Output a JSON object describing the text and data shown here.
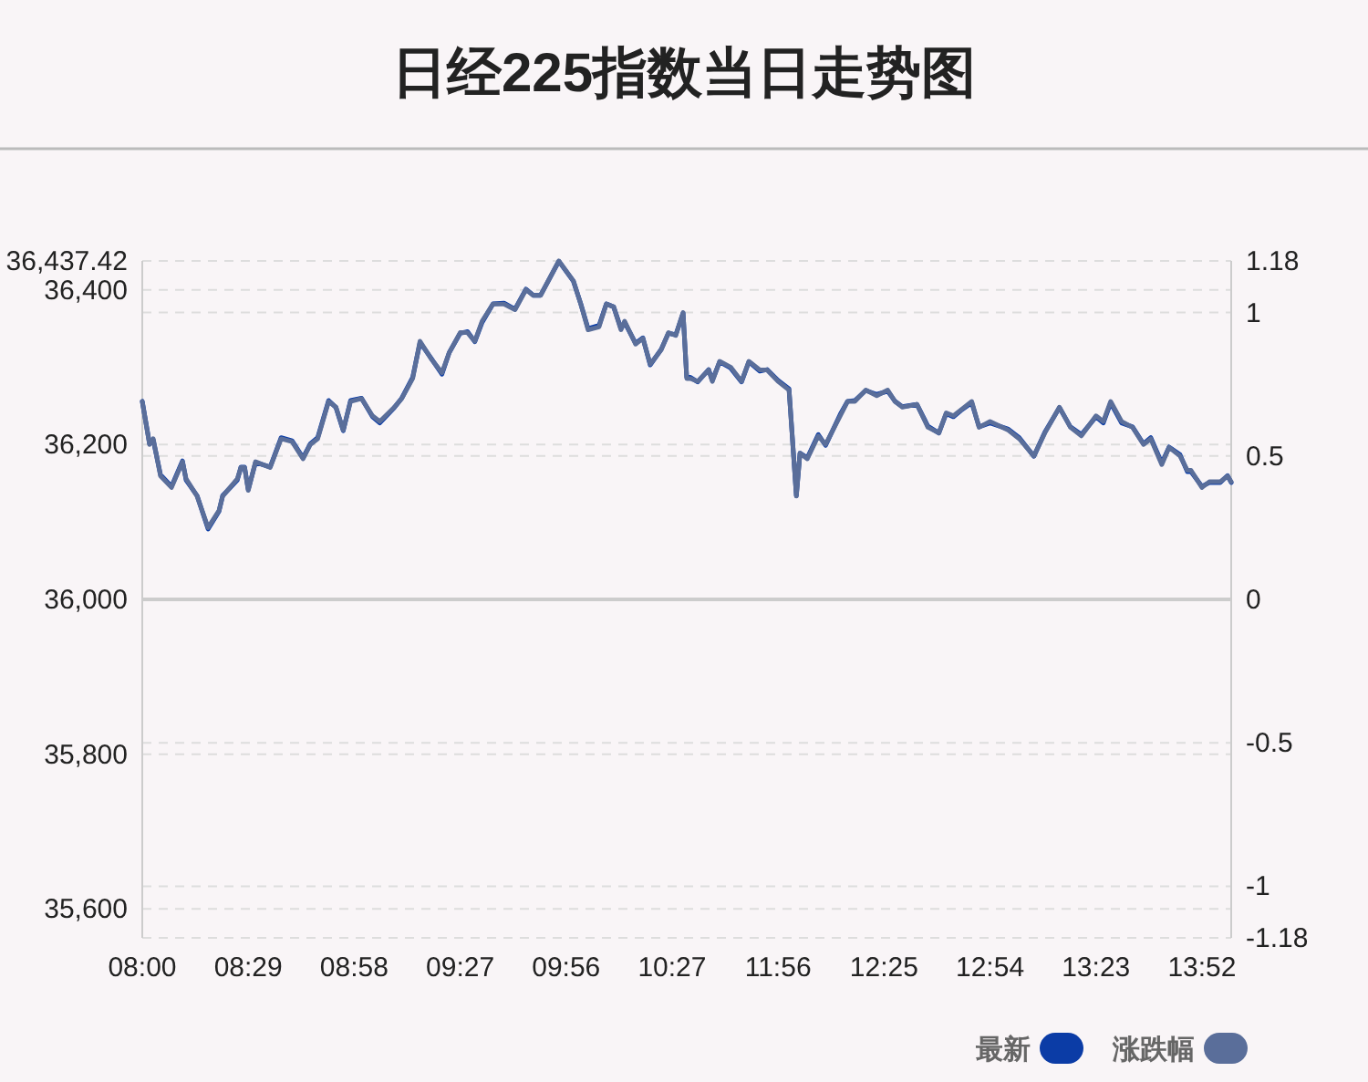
{
  "chart_data": {
    "type": "line",
    "title": "日经225指数当日走势图",
    "categories": [
      "08:00",
      null,
      null,
      null,
      null,
      null,
      null,
      null,
      null,
      null,
      null,
      null,
      null,
      null,
      null,
      null,
      null,
      null,
      null,
      null,
      null,
      null,
      null,
      null,
      null,
      null,
      null,
      null,
      null,
      "08:29",
      null,
      null,
      null,
      null,
      null,
      null,
      null,
      null,
      null,
      null,
      null,
      null,
      null,
      null,
      null,
      null,
      null,
      null,
      null,
      null,
      null,
      null,
      null,
      null,
      null,
      null,
      null,
      null,
      "08:58",
      null,
      null,
      null,
      null,
      null,
      null,
      null,
      null,
      null,
      null,
      null,
      null,
      null,
      null,
      null,
      null,
      null,
      null,
      null,
      null,
      null,
      null,
      null,
      null,
      null,
      null,
      null,
      null,
      "09:27",
      null,
      null,
      null,
      null,
      null,
      null,
      null,
      null,
      null,
      null,
      null,
      null,
      null,
      null,
      null,
      null,
      null,
      null,
      null,
      null,
      null,
      null,
      null,
      null,
      null,
      null,
      null,
      null,
      "09:56",
      null,
      null,
      null,
      null,
      null,
      null,
      null,
      null,
      null,
      null,
      null,
      null,
      null,
      null,
      null,
      null,
      null,
      null,
      null,
      null,
      null,
      null,
      null,
      null,
      null,
      null,
      null,
      null,
      "10:27",
      null,
      null,
      null,
      null,
      null,
      null,
      null,
      null,
      null,
      null,
      null,
      null,
      null,
      null,
      null,
      null,
      null,
      null,
      null,
      null,
      null,
      null,
      null,
      null,
      null,
      null,
      null,
      null,
      "11:56",
      null,
      null,
      null,
      null,
      null,
      null,
      null,
      null,
      null,
      null,
      null,
      null,
      null,
      null,
      null,
      null,
      null,
      null,
      null,
      null,
      null,
      null,
      null,
      null,
      null,
      null,
      null,
      null,
      "12:25",
      null,
      null,
      null,
      null,
      null,
      null,
      null,
      null,
      null,
      null,
      null,
      null,
      null,
      null,
      null,
      null,
      null,
      null,
      null,
      null,
      null,
      null,
      null,
      null,
      null,
      null,
      null,
      null,
      "12:54",
      null,
      null,
      null,
      null,
      null,
      null,
      null,
      null,
      null,
      null,
      null,
      null,
      null,
      null,
      null,
      null,
      null,
      null,
      null,
      null,
      null,
      null,
      null,
      null,
      null,
      null,
      null,
      null,
      "13:23",
      null,
      null,
      null,
      null,
      null,
      null,
      null,
      null,
      null,
      null,
      null,
      null,
      null,
      null,
      null,
      null,
      null,
      null,
      null,
      null,
      null,
      null,
      null,
      null,
      null,
      null,
      null,
      null,
      "13:52",
      null,
      null,
      null,
      null,
      null,
      null,
      null,
      null
    ],
    "series": [
      {
        "name": "最新",
        "color": "#0b3ca6",
        "values": [
          36256,
          null,
          36201,
          36206,
          null,
          36161,
          null,
          null,
          36146,
          null,
          null,
          36179,
          36154,
          null,
          null,
          36134,
          null,
          null,
          36091,
          null,
          null,
          36114,
          36134,
          null,
          null,
          null,
          36154,
          36171,
          36171,
          36142,
          null,
          36177,
          null,
          null,
          null,
          36171,
          null,
          null,
          36209,
          null,
          null,
          36205,
          null,
          null,
          36183,
          null,
          36201,
          null,
          36209,
          null,
          null,
          36257,
          null,
          36248,
          null,
          36218,
          null,
          36257,
          null,
          null,
          36260,
          null,
          null,
          36236,
          null,
          36228,
          null,
          null,
          null,
          36248,
          null,
          36260,
          null,
          null,
          36287,
          null,
          36332,
          null,
          null,
          36312,
          null,
          null,
          36291,
          null,
          36319,
          null,
          null,
          36344,
          null,
          36346,
          null,
          36333,
          null,
          36358,
          null,
          null,
          36382,
          null,
          null,
          36383,
          null,
          null,
          36375,
          null,
          null,
          36401,
          null,
          36393,
          null,
          36393,
          null,
          null,
          null,
          null,
          36437,
          null,
          null,
          null,
          36411,
          null,
          36382,
          null,
          36350,
          null,
          null,
          36354,
          null,
          36382,
          null,
          36378,
          null,
          36350,
          36358,
          null,
          null,
          36331,
          null,
          36338,
          null,
          36303,
          null,
          null,
          36323,
          null,
          36344,
          null,
          36342,
          null,
          36370,
          36287,
          36287,
          null,
          36281,
          null,
          null,
          36297,
          36283,
          null,
          36307,
          null,
          null,
          36299,
          null,
          null,
          36281,
          null,
          36307,
          null,
          null,
          36295,
          null,
          36297,
          null,
          null,
          36283,
          null,
          null,
          36272,
          null,
          36134,
          36189,
          null,
          36183,
          null,
          null,
          36213,
          null,
          36199,
          null,
          null,
          null,
          36239,
          null,
          36256,
          null,
          36257,
          null,
          null,
          36270,
          null,
          null,
          36265,
          null,
          null,
          36269,
          null,
          36256,
          null,
          36249,
          null,
          null,
          null,
          36252,
          null,
          null,
          36224,
          null,
          null,
          36215,
          null,
          36240,
          null,
          36236,
          null,
          36244,
          null,
          null,
          36254,
          null,
          36223,
          null,
          null,
          36228,
          null,
          null,
          null,
          null,
          36220,
          null,
          null,
          36209,
          null,
          null,
          null,
          36185,
          null,
          null,
          36216,
          null,
          null,
          null,
          36248,
          null,
          null,
          36223,
          null,
          null,
          36213,
          null,
          null,
          null,
          36236,
          null,
          36228,
          null,
          36254,
          null,
          null,
          36228,
          null,
          null,
          36223,
          null,
          null,
          36201,
          null,
          36209,
          null,
          null,
          36176,
          null,
          36197,
          null,
          null,
          36187,
          null,
          36165,
          36165,
          null,
          null,
          36146,
          null,
          36151,
          null,
          null,
          36151,
          null,
          36160,
          36151
        ]
      },
      {
        "name": "涨跌幅",
        "color": "#5a6e9a",
        "axis": "y2",
        "values": [
          0.69,
          null,
          0.54,
          0.56,
          null,
          0.43,
          null,
          null,
          0.39,
          null,
          null,
          0.48,
          0.42,
          null,
          null,
          0.36,
          null,
          null,
          0.25,
          null,
          null,
          0.31,
          0.36,
          null,
          null,
          null,
          0.42,
          0.46,
          0.46,
          0.38,
          null,
          0.48,
          null,
          null,
          null,
          0.46,
          null,
          null,
          0.56,
          null,
          null,
          0.55,
          null,
          null,
          0.49,
          null,
          0.54,
          null,
          0.56,
          null,
          null,
          0.69,
          null,
          0.67,
          null,
          0.59,
          null,
          0.69,
          null,
          null,
          0.7,
          null,
          null,
          0.64,
          null,
          0.62,
          null,
          null,
          null,
          0.67,
          null,
          0.7,
          null,
          null,
          0.77,
          null,
          0.9,
          null,
          null,
          0.84,
          null,
          null,
          0.79,
          null,
          0.86,
          null,
          null,
          0.93,
          null,
          0.93,
          null,
          0.9,
          null,
          0.97,
          null,
          null,
          1.03,
          null,
          null,
          1.03,
          null,
          null,
          1.01,
          null,
          null,
          1.08,
          null,
          1.06,
          null,
          1.06,
          null,
          null,
          null,
          null,
          1.18,
          null,
          null,
          null,
          1.11,
          null,
          1.03,
          null,
          0.94,
          null,
          null,
          0.95,
          null,
          1.03,
          null,
          1.02,
          null,
          0.94,
          0.97,
          null,
          null,
          0.89,
          null,
          0.91,
          null,
          0.82,
          null,
          null,
          0.87,
          null,
          0.93,
          null,
          0.92,
          null,
          1.0,
          0.77,
          0.77,
          null,
          0.76,
          null,
          null,
          0.8,
          0.76,
          null,
          0.83,
          null,
          null,
          0.81,
          null,
          null,
          0.76,
          null,
          0.83,
          null,
          null,
          0.8,
          null,
          0.8,
          null,
          null,
          0.76,
          null,
          null,
          0.73,
          null,
          0.36,
          0.51,
          null,
          0.49,
          null,
          null,
          0.57,
          null,
          0.54,
          null,
          null,
          null,
          0.64,
          null,
          0.69,
          null,
          0.69,
          null,
          null,
          0.73,
          null,
          null,
          0.71,
          null,
          null,
          0.73,
          null,
          0.69,
          null,
          0.67,
          null,
          null,
          null,
          0.68,
          null,
          null,
          0.6,
          null,
          null,
          0.58,
          null,
          0.65,
          null,
          0.64,
          null,
          0.66,
          null,
          null,
          0.69,
          null,
          0.6,
          null,
          null,
          0.62,
          null,
          null,
          null,
          null,
          0.59,
          null,
          null,
          0.56,
          null,
          null,
          null,
          0.5,
          null,
          null,
          0.58,
          null,
          null,
          null,
          0.67,
          null,
          null,
          0.6,
          null,
          null,
          0.57,
          null,
          null,
          null,
          0.64,
          null,
          0.62,
          null,
          0.69,
          null,
          null,
          0.62,
          null,
          null,
          0.6,
          null,
          null,
          0.54,
          null,
          0.56,
          null,
          null,
          0.47,
          null,
          0.53,
          null,
          null,
          0.5,
          null,
          0.45,
          0.45,
          null,
          null,
          0.39,
          null,
          0.41,
          null,
          null,
          0.41,
          null,
          0.43,
          0.41
        ]
      }
    ],
    "ylim": [
      35562.58,
      36437.42
    ],
    "yticks": [
      {
        "value": 35600,
        "label": "35,600"
      },
      {
        "value": 35800,
        "label": "35,800"
      },
      {
        "value": 36000,
        "label": "36,000"
      },
      {
        "value": 36200,
        "label": "36,200"
      },
      {
        "value": 36400,
        "label": "36,400"
      },
      {
        "value": 36437.42,
        "label": "36,437.42"
      }
    ],
    "y2lim": [
      -1.18,
      1.18
    ],
    "y2ticks": [
      -1.18,
      -1,
      -0.5,
      0,
      0.5,
      1,
      1.18
    ],
    "ref_lines": [
      {
        "axis": "y2",
        "value": 0,
        "color": "#cccccc",
        "line_style": "solid"
      }
    ],
    "grid": true,
    "legend": "bottom right",
    "marker": "none",
    "line_style": "solid"
  }
}
